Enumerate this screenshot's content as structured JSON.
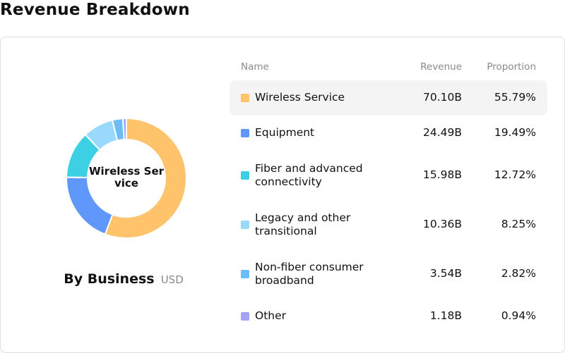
{
  "page": {
    "title": "Revenue Breakdown"
  },
  "table": {
    "headers": {
      "name": "Name",
      "revenue": "Revenue",
      "proportion": "Proportion"
    },
    "rows": [
      {
        "name": "Wireless Service",
        "revenue": "70.10B",
        "proportion": "55.79%",
        "color": "#FFC36B",
        "highlighted": true
      },
      {
        "name": "Equipment",
        "revenue": "24.49B",
        "proportion": "19.49%",
        "color": "#5F97FA",
        "highlighted": false
      },
      {
        "name": "Fiber and advanced connectivity",
        "revenue": "15.98B",
        "proportion": "12.72%",
        "color": "#3DD0E5",
        "highlighted": false
      },
      {
        "name": "Legacy and other transitional",
        "revenue": "10.36B",
        "proportion": "8.25%",
        "color": "#99D9FB",
        "highlighted": false
      },
      {
        "name": "Non-fiber consumer broadband",
        "revenue": "3.54B",
        "proportion": "2.82%",
        "color": "#6BBCF7",
        "highlighted": false
      },
      {
        "name": "Other",
        "revenue": "1.18B",
        "proportion": "0.94%",
        "color": "#A3A3F5",
        "highlighted": false
      }
    ]
  },
  "chart_data": {
    "type": "pie",
    "variant": "donut",
    "center_label": "Wireless Service",
    "title": "By Business",
    "unit": "USD",
    "categories": [
      "Wireless Service",
      "Equipment",
      "Fiber and advanced connectivity",
      "Legacy and other transitional",
      "Non-fiber consumer broadband",
      "Other"
    ],
    "values": [
      70.1,
      24.49,
      15.98,
      10.36,
      3.54,
      1.18
    ],
    "proportions": [
      55.79,
      19.49,
      12.72,
      8.25,
      2.82,
      0.94
    ],
    "colors": [
      "#FFC36B",
      "#5F97FA",
      "#3DD0E5",
      "#99D9FB",
      "#6BBCF7",
      "#A3A3F5"
    ],
    "highlighted": "Wireless Service",
    "legend": "right"
  }
}
